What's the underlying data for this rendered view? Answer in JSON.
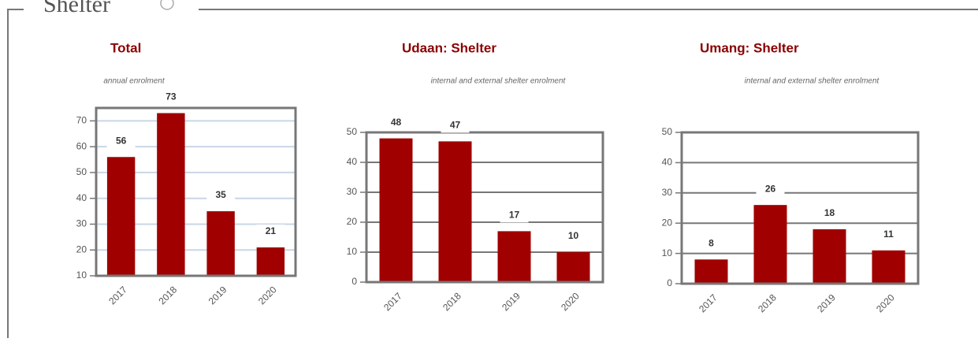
{
  "section": {
    "title": "Shelter"
  },
  "chart_data": [
    {
      "type": "bar",
      "title": "Total",
      "subtitle": "annual enrolment",
      "categories": [
        "2017",
        "2018",
        "2019",
        "2020"
      ],
      "values": [
        56,
        73,
        35,
        21
      ],
      "color": "#a00000",
      "grid": true,
      "grid_color": "#c9d6e6",
      "ylim": [
        10,
        75
      ],
      "yticks": [
        10,
        20,
        30,
        40,
        50,
        60,
        70
      ]
    },
    {
      "type": "bar",
      "title": "Udaan: Shelter",
      "subtitle": "internal and external shelter enrolment",
      "categories": [
        "2017",
        "2018",
        "2019",
        "2020"
      ],
      "values": [
        48,
        47,
        17,
        10
      ],
      "color": "#a00000",
      "grid": true,
      "grid_color": "#777777",
      "ylim": [
        0,
        50
      ],
      "yticks": [
        0,
        10,
        20,
        30,
        40,
        50
      ]
    },
    {
      "type": "bar",
      "title": "Umang: Shelter",
      "subtitle": "internal and external shelter enrolment",
      "categories": [
        "2017",
        "2018",
        "2019",
        "2020"
      ],
      "values": [
        8,
        26,
        18,
        11
      ],
      "color": "#a00000",
      "grid": true,
      "grid_color": "#777777",
      "ylim": [
        0,
        50
      ],
      "yticks": [
        0,
        10,
        20,
        30,
        40,
        50
      ]
    }
  ]
}
